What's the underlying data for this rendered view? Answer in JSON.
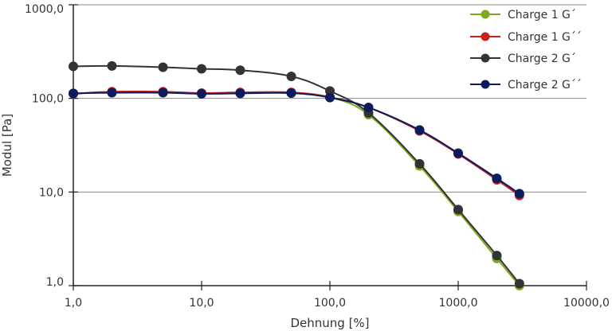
{
  "chart_data": {
    "type": "line",
    "xlabel": "Dehnung [%]",
    "ylabel": "Modul [Pa]",
    "xscale": "log",
    "yscale": "log",
    "xlim": [
      1,
      10000
    ],
    "ylim": [
      1,
      1000
    ],
    "x_ticks": [
      1,
      10,
      100,
      1000,
      10000
    ],
    "x_tick_labels": [
      "1,0",
      "10,0",
      "100,0",
      "1000,0",
      "10000,0"
    ],
    "y_ticks": [
      1,
      10,
      100,
      1000
    ],
    "y_tick_labels": [
      "1,0",
      "10,0",
      "100,0",
      "1000,0"
    ],
    "grid": "horizontal",
    "legend_position": "top-right",
    "series": [
      {
        "name": "Charge 1 G´",
        "color": "#7aaa1e",
        "x": [
          1,
          2,
          5,
          10,
          20,
          50,
          100,
          200,
          500,
          1000,
          2000,
          3000
        ],
        "y": [
          113,
          117,
          117,
          113,
          114,
          114,
          103,
          67,
          19,
          6.2,
          1.95,
          1.0
        ]
      },
      {
        "name": "Charge 1 G´´",
        "color": "#cc1f1a",
        "x": [
          1,
          2,
          5,
          10,
          20,
          50,
          100,
          200,
          500,
          1000,
          2000,
          3000
        ],
        "y": [
          112,
          118,
          118,
          114,
          116,
          116,
          103,
          80,
          45,
          25.5,
          13.5,
          9.2
        ]
      },
      {
        "name": "Charge 2 G´",
        "color": "#333333",
        "x": [
          1,
          2,
          5,
          10,
          20,
          50,
          100,
          200,
          500,
          1000,
          2000,
          3000
        ],
        "y": [
          220,
          222,
          215,
          207,
          200,
          172,
          120,
          70,
          20,
          6.5,
          2.1,
          1.05
        ]
      },
      {
        "name": "Charge 2 G´´",
        "color": "#0c1a5e",
        "x": [
          1,
          2,
          5,
          10,
          20,
          50,
          100,
          200,
          500,
          1000,
          2000,
          3000
        ],
        "y": [
          113,
          115,
          115,
          112,
          113,
          114,
          102,
          80,
          46,
          26,
          14,
          9.6
        ]
      }
    ]
  }
}
